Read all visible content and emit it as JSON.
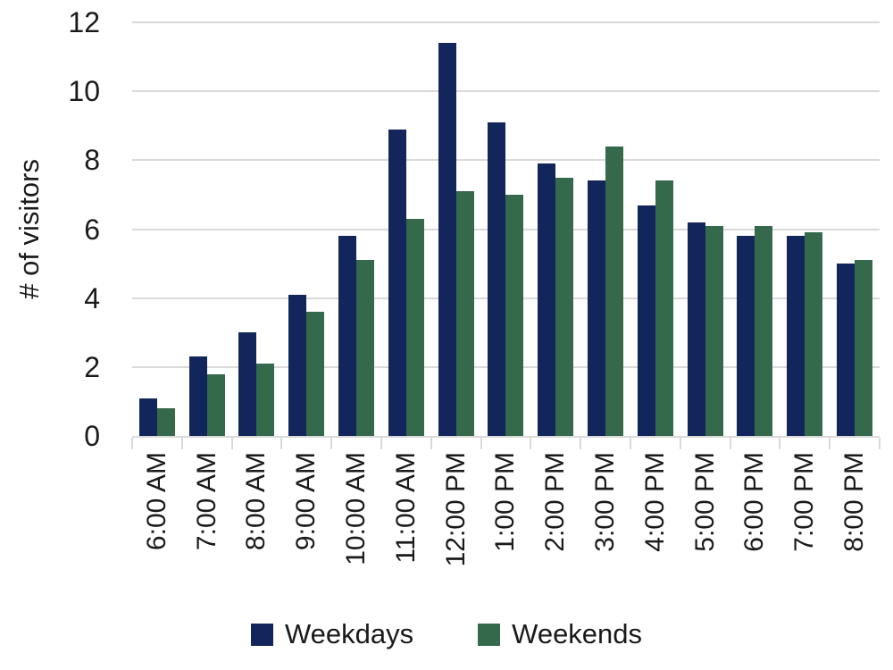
{
  "chart_data": {
    "type": "bar",
    "title": "",
    "xlabel": "",
    "ylabel": "# of visitors",
    "ylim": [
      0,
      12
    ],
    "yticks": [
      0,
      2,
      4,
      6,
      8,
      10,
      12
    ],
    "grid": true,
    "grid_color": "#d9d9d9",
    "axis_color": "#d9d9d9",
    "legend_position": "bottom",
    "categories": [
      "6:00 AM",
      "7:00 AM",
      "8:00 AM",
      "9:00 AM",
      "10:00 AM",
      "11:00 AM",
      "12:00 PM",
      "1:00 PM",
      "2:00 PM",
      "3:00 PM",
      "4:00 PM",
      "5:00 PM",
      "6:00 PM",
      "7:00 PM",
      "8:00 PM"
    ],
    "series": [
      {
        "name": "Weekdays",
        "color": "#13265B",
        "values": [
          1.1,
          2.3,
          3.0,
          4.1,
          5.8,
          8.9,
          11.4,
          9.1,
          7.9,
          7.4,
          6.7,
          6.2,
          5.8,
          5.8,
          5.0
        ]
      },
      {
        "name": "Weekends",
        "color": "#35694C",
        "values": [
          0.8,
          1.8,
          2.1,
          3.6,
          5.1,
          6.3,
          7.1,
          7.0,
          7.5,
          8.4,
          7.4,
          6.1,
          6.1,
          5.9,
          5.1
        ]
      }
    ]
  }
}
